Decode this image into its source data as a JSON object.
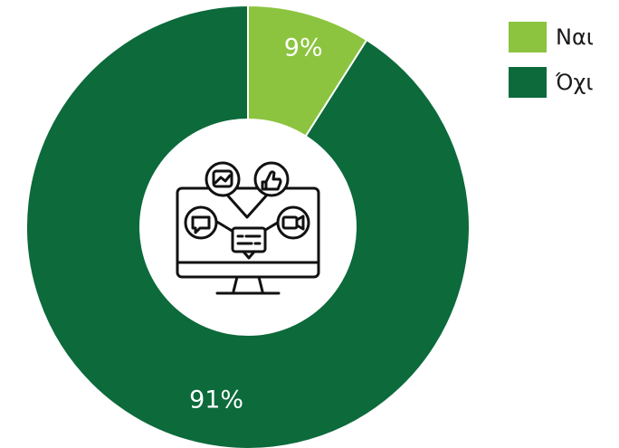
{
  "chart_data": {
    "type": "pie",
    "variant": "donut",
    "categories": [
      "Ναι",
      "Όχι"
    ],
    "values": [
      9,
      91
    ],
    "data_labels": [
      "9%",
      "91%"
    ],
    "colors": [
      "#8cc43f",
      "#0c6a3b"
    ],
    "legend": "top-right",
    "center_icon": "computer-social-media-icon"
  }
}
